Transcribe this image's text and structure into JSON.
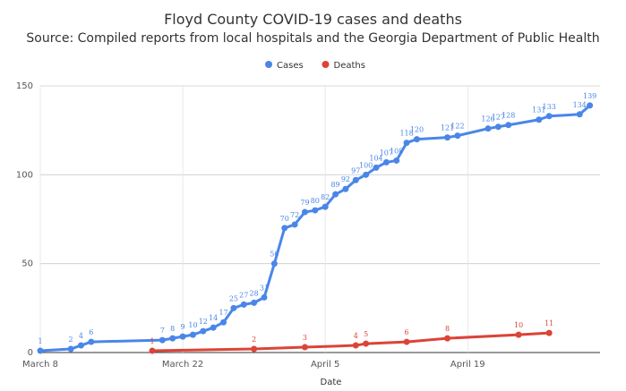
{
  "title": "Floyd County COVID-19 cases and deaths",
  "subtitle": "Source: Compiled reports from local hospitals and the Georgia Department of Public Health",
  "chart_data": {
    "type": "line",
    "title": "Floyd County COVID-19 cases and deaths",
    "subtitle": "Source: Compiled reports from local hospitals and the Georgia Department of Public Health",
    "xlabel": "Date",
    "ylabel": "",
    "ylim": [
      0,
      150
    ],
    "xlim": [
      "2020-03-08",
      "2020-05-02"
    ],
    "x_ticks": [
      {
        "label": "March 8",
        "date": "2020-03-08"
      },
      {
        "label": "March 22",
        "date": "2020-03-22"
      },
      {
        "label": "April 5",
        "date": "2020-04-05"
      },
      {
        "label": "April 19",
        "date": "2020-04-19"
      }
    ],
    "y_ticks": [
      0,
      50,
      100,
      150
    ],
    "grid": true,
    "legend_position": "top-center",
    "series": [
      {
        "name": "Cases",
        "color": "#4a86e8",
        "points": [
          {
            "x": "2020-03-08",
            "y": 1
          },
          {
            "x": "2020-03-11",
            "y": 2
          },
          {
            "x": "2020-03-12",
            "y": 4
          },
          {
            "x": "2020-03-13",
            "y": 6
          },
          {
            "x": "2020-03-20",
            "y": 7
          },
          {
            "x": "2020-03-21",
            "y": 8
          },
          {
            "x": "2020-03-22",
            "y": 9
          },
          {
            "x": "2020-03-23",
            "y": 10
          },
          {
            "x": "2020-03-24",
            "y": 12
          },
          {
            "x": "2020-03-25",
            "y": 14
          },
          {
            "x": "2020-03-26",
            "y": 17
          },
          {
            "x": "2020-03-27",
            "y": 25
          },
          {
            "x": "2020-03-28",
            "y": 27
          },
          {
            "x": "2020-03-29",
            "y": 28
          },
          {
            "x": "2020-03-30",
            "y": 31
          },
          {
            "x": "2020-03-31",
            "y": 50
          },
          {
            "x": "2020-04-01",
            "y": 70
          },
          {
            "x": "2020-04-02",
            "y": 72
          },
          {
            "x": "2020-04-03",
            "y": 79
          },
          {
            "x": "2020-04-04",
            "y": 80
          },
          {
            "x": "2020-04-05",
            "y": 82
          },
          {
            "x": "2020-04-06",
            "y": 89
          },
          {
            "x": "2020-04-07",
            "y": 92
          },
          {
            "x": "2020-04-08",
            "y": 97
          },
          {
            "x": "2020-04-09",
            "y": 100
          },
          {
            "x": "2020-04-10",
            "y": 104
          },
          {
            "x": "2020-04-11",
            "y": 107
          },
          {
            "x": "2020-04-12",
            "y": 108
          },
          {
            "x": "2020-04-13",
            "y": 118
          },
          {
            "x": "2020-04-14",
            "y": 120
          },
          {
            "x": "2020-04-17",
            "y": 121
          },
          {
            "x": "2020-04-18",
            "y": 122
          },
          {
            "x": "2020-04-21",
            "y": 126
          },
          {
            "x": "2020-04-22",
            "y": 127
          },
          {
            "x": "2020-04-23",
            "y": 128
          },
          {
            "x": "2020-04-26",
            "y": 131
          },
          {
            "x": "2020-04-27",
            "y": 133
          },
          {
            "x": "2020-04-30",
            "y": 134
          },
          {
            "x": "2020-05-01",
            "y": 139
          }
        ]
      },
      {
        "name": "Deaths",
        "color": "#db4437",
        "points": [
          {
            "x": "2020-03-19",
            "y": 1
          },
          {
            "x": "2020-03-29",
            "y": 2
          },
          {
            "x": "2020-04-03",
            "y": 3
          },
          {
            "x": "2020-04-08",
            "y": 4
          },
          {
            "x": "2020-04-09",
            "y": 5
          },
          {
            "x": "2020-04-13",
            "y": 6
          },
          {
            "x": "2020-04-17",
            "y": 8
          },
          {
            "x": "2020-04-24",
            "y": 10
          },
          {
            "x": "2020-04-27",
            "y": 11
          }
        ]
      }
    ]
  }
}
